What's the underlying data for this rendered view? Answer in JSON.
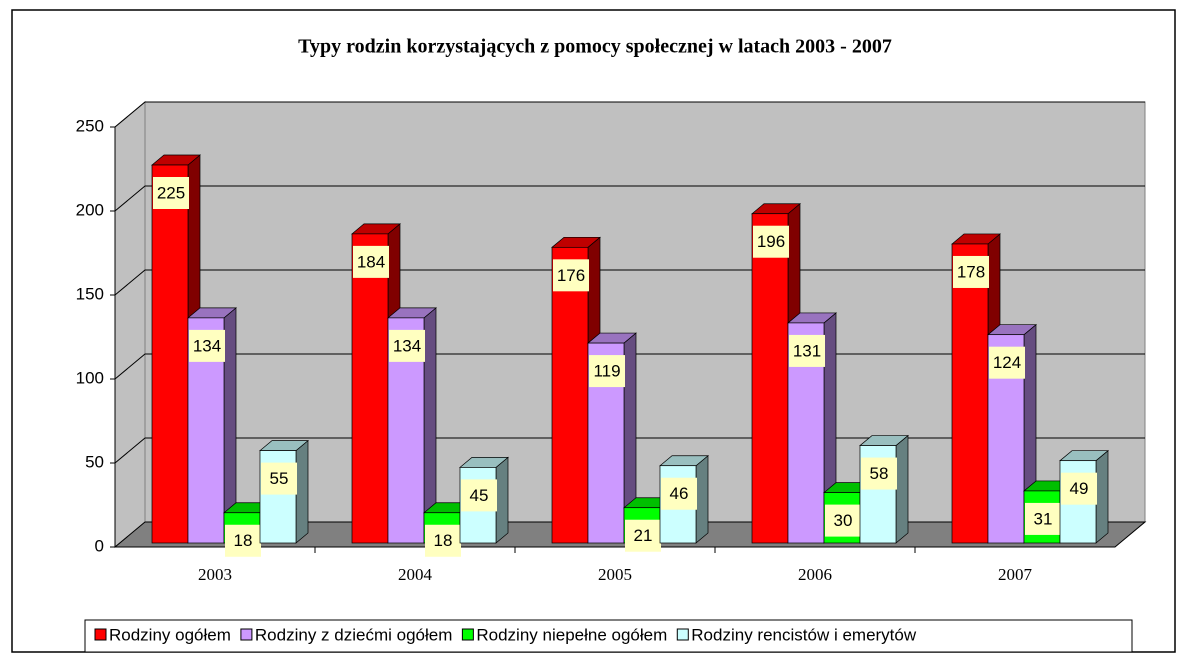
{
  "chart_data": {
    "type": "bar3d",
    "title": "Typy rodzin korzystających z pomocy społecznej w latach 2003 - 2007",
    "categories": [
      "2003",
      "2004",
      "2005",
      "2006",
      "2007"
    ],
    "series": [
      {
        "name": "Rodziny ogółem",
        "color": "#ff0000",
        "values": [
          225,
          184,
          176,
          196,
          178
        ]
      },
      {
        "name": "Rodziny z dziećmi ogółem",
        "color": "#cc99ff",
        "values": [
          134,
          134,
          119,
          131,
          124
        ]
      },
      {
        "name": "Rodziny niepełne ogółem",
        "color": "#00ff00",
        "values": [
          18,
          18,
          21,
          30,
          31
        ]
      },
      {
        "name": "Rodziny rencistów i emerytów",
        "color": "#ccffff",
        "values": [
          55,
          45,
          46,
          58,
          49
        ]
      }
    ],
    "ylim": [
      0,
      250
    ],
    "yticks": [
      0,
      50,
      100,
      150,
      200,
      250
    ],
    "grid": true,
    "legend": "bottom"
  }
}
